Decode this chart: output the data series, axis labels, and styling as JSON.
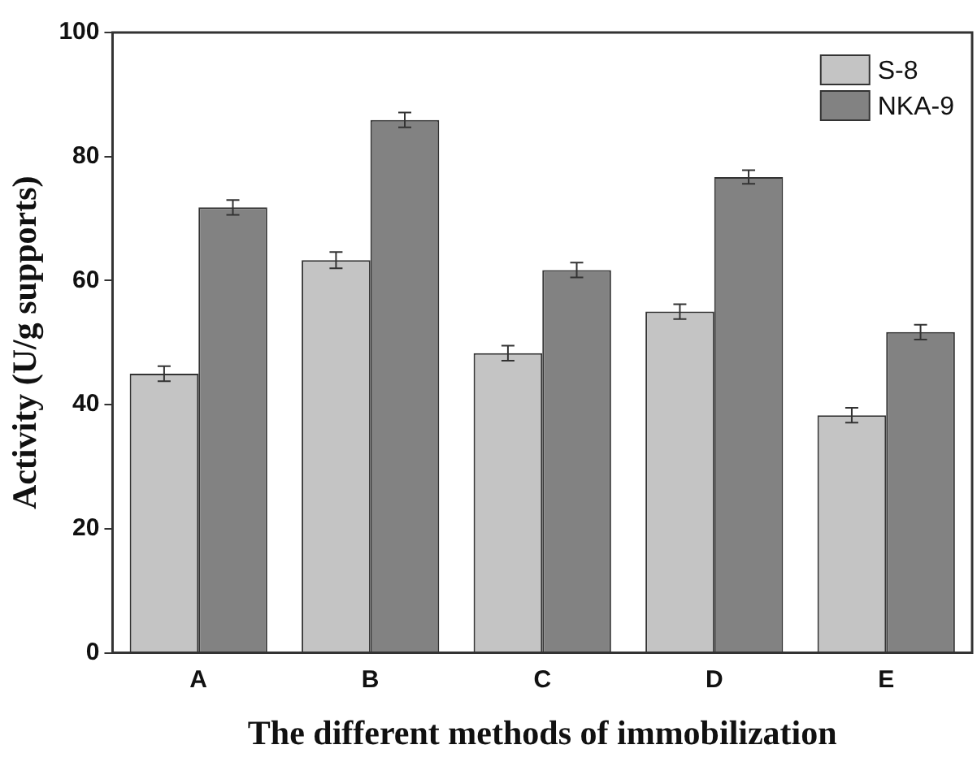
{
  "chart_data": {
    "type": "bar",
    "xlabel": "The different methods of immobilization",
    "ylabel": "Activity (U/g supports)",
    "categories": [
      "A",
      "B",
      "C",
      "D",
      "E"
    ],
    "series": [
      {
        "name": "S-8",
        "color": "#c4c4c4",
        "values": [
          45,
          63.3,
          48.3,
          55,
          38.3
        ],
        "errors": [
          1.2,
          1.3,
          1.2,
          1.2,
          1.2
        ]
      },
      {
        "name": "NKA-9",
        "color": "#828282",
        "values": [
          71.8,
          85.9,
          61.7,
          76.7,
          51.7
        ],
        "errors": [
          1.2,
          1.2,
          1.2,
          1.1,
          1.2
        ]
      }
    ],
    "ylim": [
      0,
      100
    ],
    "yticks": [
      0,
      20,
      40,
      60,
      80,
      100
    ],
    "grid": false,
    "legend": "top right"
  }
}
